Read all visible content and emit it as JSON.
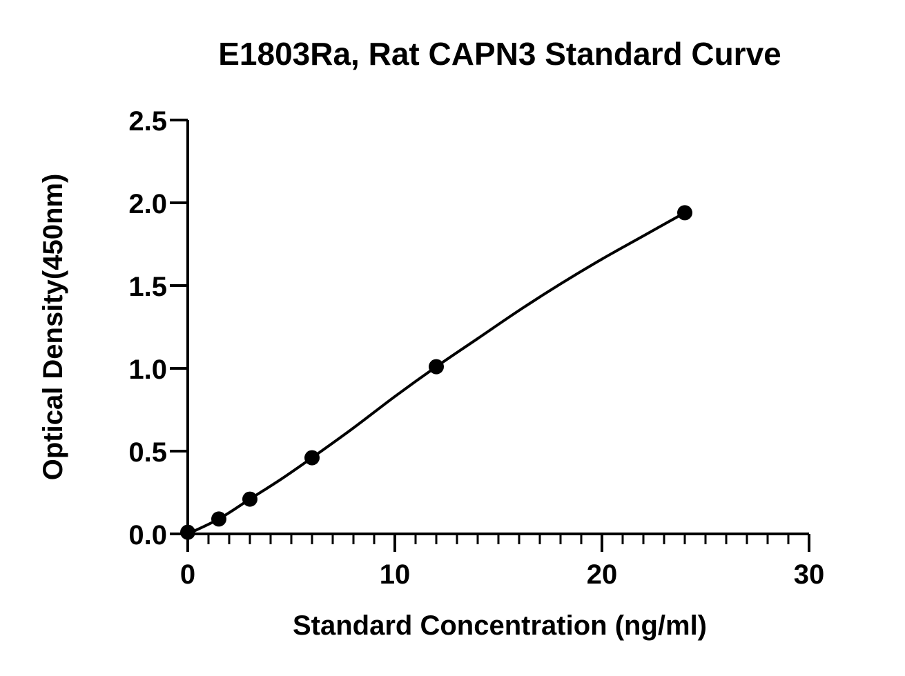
{
  "chart_data": {
    "type": "scatter",
    "title": "E1803Ra, Rat CAPN3 Standard Curve",
    "xlabel": "Standard Concentration (ng/ml)",
    "ylabel": "Optical Density(450nm)",
    "xlim": [
      0,
      30
    ],
    "ylim": [
      0,
      2.5
    ],
    "x_ticks": [
      "0",
      "10",
      "20",
      "30"
    ],
    "y_ticks": [
      "0.0",
      "0.5",
      "1.0",
      "1.5",
      "2.0",
      "2.5"
    ],
    "grid": false,
    "points": [
      {
        "x": 0,
        "y": 0.01
      },
      {
        "x": 1.5,
        "y": 0.09
      },
      {
        "x": 3,
        "y": 0.21
      },
      {
        "x": 6,
        "y": 0.46
      },
      {
        "x": 12,
        "y": 1.01
      },
      {
        "x": 24,
        "y": 1.94
      }
    ],
    "fit_curve": [
      {
        "x": 0,
        "y": 0.0
      },
      {
        "x": 1.5,
        "y": 0.09
      },
      {
        "x": 3,
        "y": 0.21
      },
      {
        "x": 4.5,
        "y": 0.33
      },
      {
        "x": 6,
        "y": 0.46
      },
      {
        "x": 8,
        "y": 0.64
      },
      {
        "x": 10,
        "y": 0.83
      },
      {
        "x": 12,
        "y": 1.01
      },
      {
        "x": 14,
        "y": 1.18
      },
      {
        "x": 16,
        "y": 1.35
      },
      {
        "x": 18,
        "y": 1.51
      },
      {
        "x": 20,
        "y": 1.66
      },
      {
        "x": 22,
        "y": 1.8
      },
      {
        "x": 24,
        "y": 1.94
      }
    ]
  }
}
